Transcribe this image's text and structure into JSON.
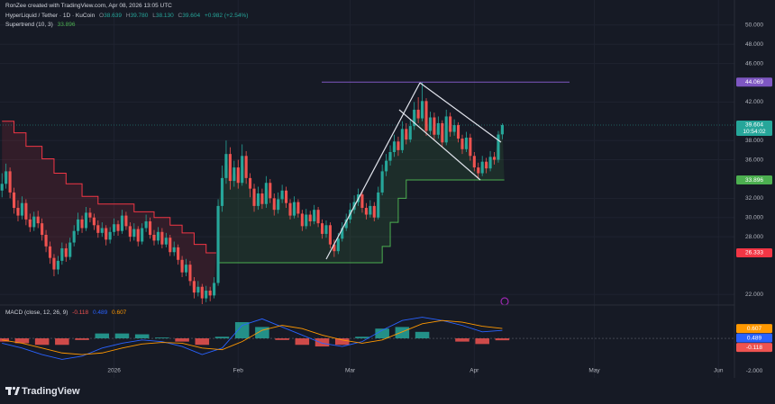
{
  "header": {
    "credit": "RonZee created with TradingView.com, Apr 08, 2026 13:05 UTC"
  },
  "footer": {
    "brand": "TradingView"
  },
  "chart_data": {
    "type": "candlestick",
    "title": "HyperLiquid / Tether · 1D · KuCoin",
    "legend_labels": {
      "open": "O",
      "high": "H",
      "low": "L",
      "close": "C"
    },
    "legend_values": [
      "38.639",
      "39.780",
      "38.130",
      "39.604"
    ],
    "change": "+0.982 (+2.54%)",
    "countdown": "10:54:02",
    "up_color": "#26a69a",
    "down_color": "#ef5350",
    "x": [
      -28,
      -27,
      -26,
      -25,
      -24,
      -23,
      -22,
      -21,
      -20,
      -19,
      -18,
      -17,
      -16,
      -15,
      -14,
      -13,
      -12,
      -11,
      -10,
      -9,
      -8,
      -7,
      -6,
      -5,
      -4,
      -3,
      -2,
      -1,
      0,
      1,
      2,
      3,
      4,
      5,
      6,
      7,
      8,
      9,
      10,
      11,
      12,
      13,
      14,
      15,
      16,
      17,
      18,
      19,
      20,
      21,
      22,
      23,
      24,
      25,
      26,
      27,
      28,
      29,
      30,
      31,
      32,
      33,
      34,
      35,
      36,
      37,
      38,
      39,
      40,
      41,
      42,
      43,
      44,
      45,
      46,
      47,
      48,
      49,
      50,
      51,
      52,
      53,
      54,
      55,
      56,
      57,
      58,
      59,
      60,
      61,
      62,
      63,
      64,
      65,
      66,
      67,
      68,
      69,
      70,
      71,
      72,
      73,
      74,
      75,
      76,
      77,
      78,
      79,
      80,
      81,
      82,
      83,
      84,
      85,
      86,
      87,
      88,
      89,
      90,
      91,
      92,
      93,
      94,
      95,
      96,
      97
    ],
    "open": [
      32.8,
      33.5,
      34.8,
      32.6,
      31.0,
      30.2,
      31.5,
      29.8,
      29.0,
      30.1,
      29.4,
      28.2,
      27.0,
      25.8,
      24.6,
      25.5,
      26.8,
      25.9,
      27.4,
      28.6,
      29.8,
      28.9,
      30.5,
      30.0,
      29.2,
      28.4,
      28.9,
      27.7,
      28.5,
      29.3,
      28.6,
      30.2,
      29.1,
      28.0,
      28.8,
      27.5,
      28.9,
      29.6,
      28.2,
      27.6,
      28.5,
      27.2,
      27.9,
      26.4,
      26.9,
      25.6,
      24.3,
      25.1,
      23.4,
      22.2,
      22.8,
      21.6,
      22.4,
      21.9,
      23.2,
      31.2,
      34.1,
      36.6,
      33.8,
      35.2,
      33.6,
      36.4,
      34.1,
      33.0,
      31.2,
      32.5,
      31.4,
      33.6,
      32.0,
      30.8,
      31.9,
      32.8,
      31.5,
      30.2,
      31.6,
      30.4,
      29.1,
      30.3,
      29.6,
      30.8,
      29.4,
      28.3,
      29.2,
      27.2,
      26.5,
      27.8,
      28.9,
      29.8,
      30.8,
      31.6,
      32.4,
      31.0,
      30.3,
      31.2,
      30.0,
      32.6,
      34.8,
      35.9,
      36.8,
      37.9,
      37.0,
      39.2,
      38.1,
      39.5,
      41.2,
      40.3,
      42.1,
      39.0,
      40.4,
      38.6,
      39.8,
      37.8,
      40.5,
      38.9,
      39.6,
      38.2,
      37.1,
      38.3,
      36.4,
      35.2,
      34.6,
      35.8,
      35.1,
      36.3,
      36.0,
      38.639
    ],
    "high": [
      34.6,
      35.6,
      35.2,
      33.1,
      31.8,
      32.2,
      31.9,
      30.4,
      30.6,
      30.7,
      29.9,
      28.7,
      27.5,
      26.2,
      26.0,
      27.4,
      27.3,
      27.9,
      29.2,
      30.5,
      30.2,
      31.1,
      31.0,
      30.4,
      29.7,
      29.5,
      29.2,
      29.0,
      29.9,
      29.7,
      30.8,
      30.6,
      29.5,
      29.4,
      29.1,
      29.4,
      30.3,
      30.0,
      28.7,
      29.0,
      28.9,
      28.4,
      28.2,
      27.5,
      27.2,
      26.0,
      25.7,
      25.5,
      23.8,
      23.4,
      23.1,
      22.9,
      22.8,
      23.8,
      31.9,
      35.4,
      38.0,
      37.3,
      35.9,
      36.0,
      37.6,
      36.9,
      34.6,
      33.5,
      33.2,
      33.0,
      34.3,
      34.0,
      32.5,
      32.6,
      33.4,
      33.2,
      31.9,
      32.2,
      31.9,
      30.8,
      30.9,
      30.7,
      31.3,
      31.1,
      29.8,
      29.7,
      29.5,
      27.7,
      28.4,
      29.5,
      30.4,
      31.5,
      32.3,
      33.0,
      32.8,
      31.5,
      31.8,
      31.6,
      33.2,
      35.5,
      36.6,
      37.5,
      38.6,
      38.4,
      40.0,
      39.8,
      40.2,
      42.0,
      42.5,
      44.069,
      42.4,
      41.0,
      40.9,
      40.5,
      40.1,
      41.2,
      40.9,
      40.2,
      39.9,
      38.6,
      38.9,
      38.7,
      36.8,
      35.7,
      36.4,
      36.2,
      36.9,
      36.8,
      39.0,
      39.78
    ],
    "low": [
      32.1,
      33.0,
      32.0,
      30.4,
      29.6,
      29.8,
      29.2,
      28.5,
      28.6,
      28.9,
      27.6,
      26.4,
      25.2,
      23.9,
      24.1,
      25.1,
      25.4,
      25.6,
      27.0,
      28.2,
      28.4,
      28.6,
      29.5,
      28.7,
      27.9,
      28.0,
      27.1,
      27.3,
      28.1,
      28.1,
      28.3,
      28.7,
      27.5,
      27.6,
      27.0,
      27.2,
      28.5,
      27.8,
      27.1,
      27.2,
      26.8,
      26.9,
      26.0,
      26.0,
      25.1,
      23.8,
      23.9,
      22.9,
      21.6,
      21.8,
      21.0,
      21.2,
      21.3,
      21.6,
      22.9,
      30.6,
      33.5,
      32.9,
      33.2,
      33.0,
      33.3,
      33.5,
      32.1,
      30.6,
      30.8,
      30.9,
      31.0,
      31.5,
      30.2,
      30.4,
      31.5,
      31.0,
      29.8,
      29.9,
      30.0,
      28.6,
      28.8,
      29.1,
      29.3,
      29.0,
      27.8,
      27.9,
      26.8,
      25.9,
      26.2,
      27.5,
      28.6,
      29.4,
      30.4,
      31.2,
      30.5,
      29.8,
      30.0,
      29.6,
      29.8,
      32.3,
      34.3,
      35.4,
      36.3,
      36.4,
      36.7,
      37.6,
      37.8,
      39.1,
      39.8,
      40.0,
      38.5,
      38.6,
      38.0,
      38.2,
      37.3,
      37.5,
      38.4,
      38.5,
      37.8,
      36.6,
      36.8,
      35.9,
      34.8,
      34.1,
      34.3,
      34.6,
      34.8,
      35.5,
      35.7,
      38.13
    ],
    "close": [
      33.5,
      34.8,
      32.6,
      31.0,
      30.2,
      31.5,
      29.8,
      29.0,
      30.1,
      29.4,
      28.2,
      27.0,
      25.8,
      24.6,
      25.5,
      26.8,
      25.9,
      27.4,
      28.6,
      29.8,
      28.9,
      30.5,
      30.0,
      29.2,
      28.4,
      28.9,
      27.7,
      28.5,
      29.3,
      28.6,
      30.2,
      29.1,
      28.0,
      28.8,
      27.5,
      28.9,
      29.6,
      28.2,
      27.6,
      28.5,
      27.2,
      27.9,
      26.4,
      26.9,
      25.6,
      24.3,
      25.1,
      23.4,
      22.2,
      22.8,
      21.6,
      22.4,
      21.9,
      23.2,
      31.2,
      34.1,
      36.6,
      33.8,
      35.2,
      33.6,
      36.4,
      34.1,
      33.0,
      31.2,
      32.5,
      31.4,
      33.6,
      32.0,
      30.8,
      31.9,
      32.8,
      31.5,
      30.2,
      31.6,
      30.4,
      29.1,
      30.3,
      29.6,
      30.8,
      29.4,
      28.3,
      29.2,
      27.2,
      26.5,
      27.8,
      28.9,
      29.8,
      30.8,
      31.6,
      32.4,
      31.0,
      30.3,
      31.2,
      30.0,
      32.6,
      34.8,
      35.9,
      36.8,
      37.9,
      37.0,
      39.2,
      38.1,
      39.5,
      41.2,
      40.3,
      42.1,
      39.0,
      40.4,
      38.6,
      39.8,
      37.8,
      40.5,
      38.9,
      39.6,
      38.2,
      37.1,
      38.3,
      36.4,
      35.2,
      34.6,
      35.8,
      35.1,
      36.3,
      36.0,
      38.622,
      39.604
    ],
    "xlim": [
      -28.5,
      155
    ],
    "xticks": [
      {
        "value": 0,
        "label": "2026"
      },
      {
        "value": 31,
        "label": "Feb"
      },
      {
        "value": 59,
        "label": "Mar"
      },
      {
        "value": 90,
        "label": "Apr"
      },
      {
        "value": 120,
        "label": "May"
      },
      {
        "value": 151,
        "label": "Jun"
      }
    ],
    "ylim": [
      21.0,
      52.6
    ],
    "yticks": [
      {
        "value": 50,
        "label": "50.000"
      },
      {
        "value": 48,
        "label": "48.000"
      },
      {
        "value": 46,
        "label": "46.000"
      },
      {
        "value": 42,
        "label": "42.000"
      },
      {
        "value": 38,
        "label": "38.000"
      },
      {
        "value": 36,
        "label": "36.000"
      },
      {
        "value": 32,
        "label": "32.000"
      },
      {
        "value": 30,
        "label": "30.000"
      },
      {
        "value": 28,
        "label": "28.000"
      },
      {
        "value": 22,
        "label": "22.000"
      }
    ],
    "grid": true,
    "levels": [
      {
        "value": 44.069,
        "color": "#7e57c2"
      }
    ],
    "supertrend": {
      "name": "Supertrend (10, 3)",
      "series": [
        {
          "color": "#f23645",
          "x": [
            -28,
            -25,
            -22,
            -18,
            -15,
            -12,
            -8,
            -4,
            5,
            10,
            14,
            17,
            20,
            23,
            25
          ],
          "values": [
            40.0,
            38.8,
            37.4,
            36.1,
            34.6,
            33.5,
            32.2,
            31.4,
            30.6,
            30.0,
            29.2,
            28.4,
            27.2,
            26.333,
            26.333
          ]
        },
        {
          "color": "#4caf50",
          "x": [
            26,
            66,
            67,
            69,
            71,
            73,
            97
          ],
          "values": [
            25.3,
            25.3,
            27.0,
            29.5,
            32.0,
            33.896,
            33.896
          ]
        }
      ]
    },
    "macd": {
      "name": "MACD (close, 12, 26, 9)",
      "x": [
        -28,
        -23,
        -18,
        -13,
        -8,
        -3,
        2,
        7,
        12,
        17,
        22,
        27,
        32,
        37,
        42,
        47,
        52,
        57,
        62,
        67,
        72,
        77,
        82,
        87,
        92,
        97
      ],
      "ylim": [
        -2.44,
        2.0
      ],
      "yticks": [
        {
          "value": -2,
          "label": "-2.000"
        }
      ],
      "histogram": {
        "up_color": "#26a69a",
        "down_color": "#ef5350",
        "values": [
          -0.2,
          -0.3,
          -0.4,
          -0.4,
          -0.1,
          0.3,
          0.3,
          0.25,
          0.05,
          -0.2,
          -0.4,
          0.1,
          1.0,
          0.7,
          -0.1,
          -0.4,
          -0.5,
          -0.4,
          0.1,
          0.6,
          0.7,
          0.4,
          0.0,
          -0.2,
          -0.35,
          -0.118
        ]
      },
      "series": [
        {
          "color": "#2962ff",
          "values": [
            -0.3,
            -0.6,
            -1.0,
            -1.3,
            -1.1,
            -0.6,
            -0.3,
            -0.1,
            -0.2,
            -0.5,
            -1.0,
            -0.6,
            0.8,
            1.2,
            0.7,
            0.2,
            -0.3,
            -0.5,
            -0.2,
            0.5,
            1.1,
            1.3,
            1.1,
            0.8,
            0.4,
            0.489
          ]
        },
        {
          "color": "#ff9800",
          "values": [
            -0.1,
            -0.3,
            -0.6,
            -0.9,
            -1.0,
            -0.9,
            -0.6,
            -0.35,
            -0.25,
            -0.3,
            -0.6,
            -0.7,
            -0.2,
            0.5,
            0.8,
            0.6,
            0.2,
            -0.1,
            -0.3,
            -0.1,
            0.4,
            0.9,
            1.1,
            1.0,
            0.75,
            0.607
          ]
        }
      ]
    }
  }
}
